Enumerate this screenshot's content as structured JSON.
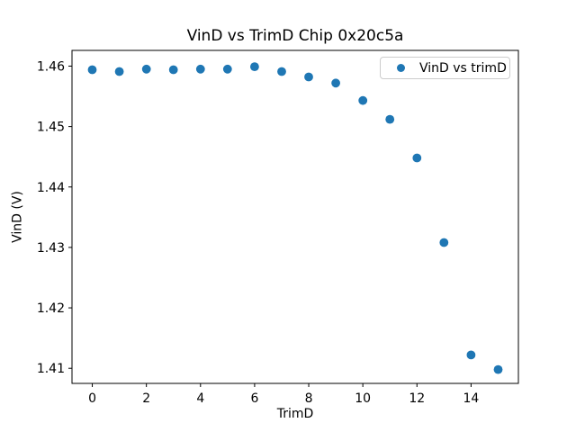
{
  "chart_data": {
    "type": "scatter",
    "title": "VinD vs TrimD Chip 0x20c5a",
    "xlabel": "TrimD",
    "ylabel": "VinD (V)",
    "legend": {
      "label": "VinD vs trimD",
      "position": "upper right"
    },
    "marker_color": "#1f77b4",
    "marker_shape": "circle",
    "x": [
      0,
      1,
      2,
      3,
      4,
      5,
      6,
      7,
      8,
      9,
      10,
      11,
      12,
      13,
      14,
      15
    ],
    "y": [
      1.4594,
      1.4591,
      1.4595,
      1.4594,
      1.4595,
      1.4595,
      1.4599,
      1.4591,
      1.4582,
      1.4572,
      1.4543,
      1.4512,
      1.4448,
      1.4308,
      1.4122,
      1.4098
    ],
    "xlim": [
      -0.75,
      15.75
    ],
    "ylim": [
      1.4075,
      1.4626
    ],
    "xticks": [
      0,
      2,
      4,
      6,
      8,
      10,
      12,
      14
    ],
    "yticks": [
      1.41,
      1.42,
      1.43,
      1.44,
      1.45,
      1.46
    ],
    "ytick_decimals": 2,
    "grid": false
  }
}
